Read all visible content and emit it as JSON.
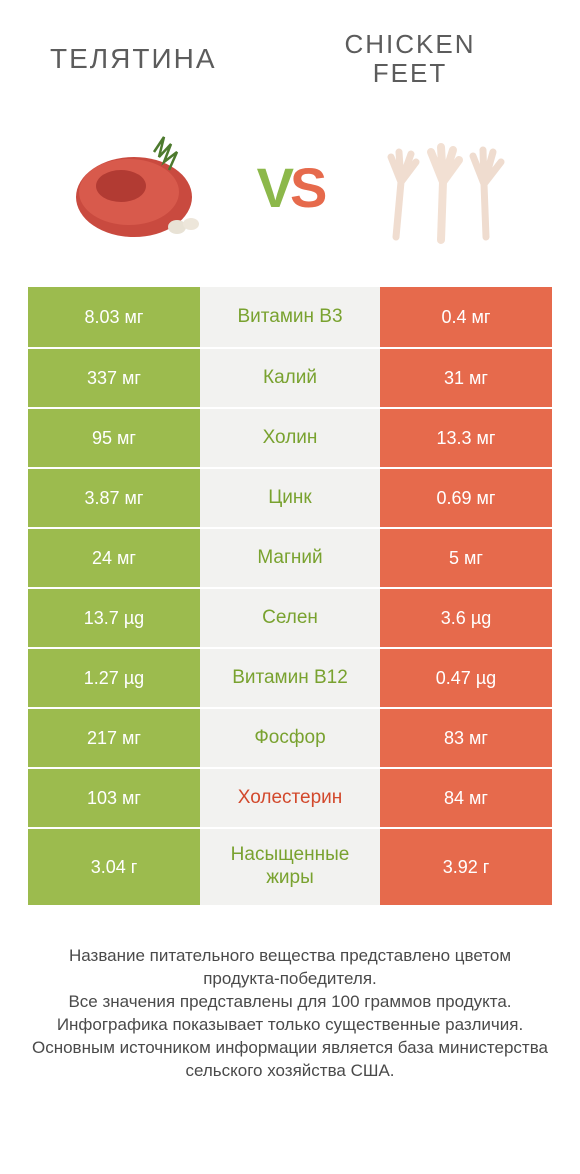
{
  "titles": {
    "left": "ТЕЛЯТИНА",
    "right_l1": "CHICKEN",
    "right_l2": "FEET"
  },
  "vs": {
    "v": "V",
    "s": "S"
  },
  "colors": {
    "green": "#9cbb4e",
    "red": "#e66a4c",
    "mid": "#f2f2f0",
    "mid_green": "#79a22f",
    "mid_red": "#d2492c"
  },
  "rows": [
    {
      "left": "8.03 мг",
      "mid": "Витамин B3",
      "right": "0.4 мг",
      "winner": "left",
      "tall": false
    },
    {
      "left": "337 мг",
      "mid": "Калий",
      "right": "31 мг",
      "winner": "left",
      "tall": false
    },
    {
      "left": "95 мг",
      "mid": "Холин",
      "right": "13.3 мг",
      "winner": "left",
      "tall": false
    },
    {
      "left": "3.87 мг",
      "mid": "Цинк",
      "right": "0.69 мг",
      "winner": "left",
      "tall": false
    },
    {
      "left": "24 мг",
      "mid": "Магний",
      "right": "5 мг",
      "winner": "left",
      "tall": false
    },
    {
      "left": "13.7 µg",
      "mid": "Селен",
      "right": "3.6 µg",
      "winner": "left",
      "tall": false
    },
    {
      "left": "1.27 µg",
      "mid": "Витамин B12",
      "right": "0.47 µg",
      "winner": "left",
      "tall": false
    },
    {
      "left": "217 мг",
      "mid": "Фосфор",
      "right": "83 мг",
      "winner": "left",
      "tall": false
    },
    {
      "left": "103 мг",
      "mid": "Холестерин",
      "right": "84 мг",
      "winner": "right",
      "tall": false
    },
    {
      "left": "3.04 г",
      "mid": "Насыщенные жиры",
      "right": "3.92 г",
      "winner": "left",
      "tall": true
    }
  ],
  "footer": [
    "Название питательного вещества представлено цветом продукта-победителя.",
    "Все значения представлены для 100 граммов продукта.",
    "Инфографика показывает только существенные различия.",
    "Основным источником информации является база министерства сельского хозяйства США."
  ]
}
